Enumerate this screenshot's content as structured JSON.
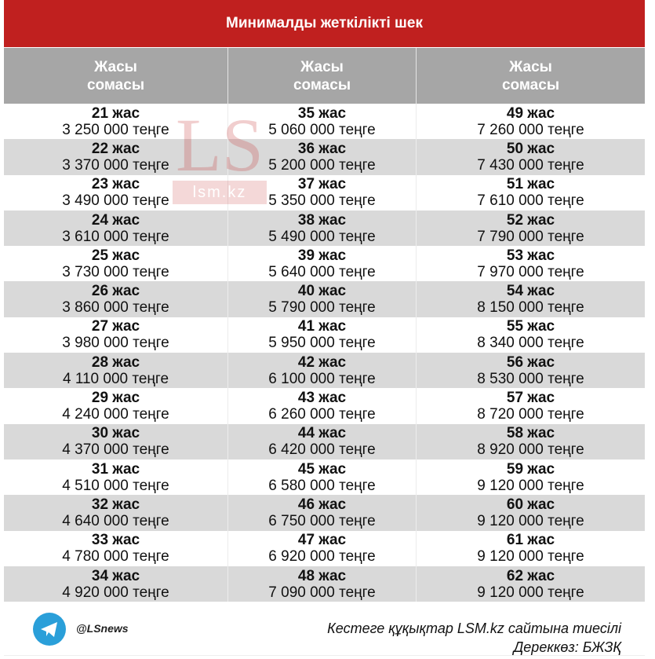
{
  "title": "Минималды жеткілікті шек",
  "header": [
    {
      "l1": "Жасы",
      "l2": "сомасы"
    },
    {
      "l1": "Жасы",
      "l2": "сомасы"
    },
    {
      "l1": "Жасы",
      "l2": "сомасы"
    }
  ],
  "rows": [
    [
      [
        "21 жас",
        "3 250 000 теңге"
      ],
      [
        "35 жас",
        "5 060 000 теңге"
      ],
      [
        "49 жас",
        "7 260 000 теңге"
      ]
    ],
    [
      [
        "22 жас",
        "3 370 000 теңге"
      ],
      [
        "36 жас",
        "5 200 000 теңге"
      ],
      [
        "50 жас",
        "7 430 000 теңге"
      ]
    ],
    [
      [
        "23 жас",
        "3 490 000 теңге"
      ],
      [
        "37 жас",
        "5 350 000 теңге"
      ],
      [
        "51 жас",
        "7 610 000 теңге"
      ]
    ],
    [
      [
        "24 жас",
        "3 610 000 теңге"
      ],
      [
        "38 жас",
        "5 490 000 теңге"
      ],
      [
        "52 жас",
        "7 790 000 теңге"
      ]
    ],
    [
      [
        "25 жас",
        "3 730 000 теңге"
      ],
      [
        "39 жас",
        "5 640 000 теңге"
      ],
      [
        "53 жас",
        "7 970 000 теңге"
      ]
    ],
    [
      [
        "26 жас",
        "3 860 000 теңге"
      ],
      [
        "40 жас",
        "5 790 000 теңге"
      ],
      [
        "54 жас",
        "8 150 000 теңге"
      ]
    ],
    [
      [
        "27 жас",
        "3 980 000 теңге"
      ],
      [
        "41 жас",
        "5 950 000 теңге"
      ],
      [
        "55 жас",
        "8 340 000 теңге"
      ]
    ],
    [
      [
        "28 жас",
        "4 110 000 теңге"
      ],
      [
        "42 жас",
        "6 100 000 теңге"
      ],
      [
        "56 жас",
        "8 530 000 теңге"
      ]
    ],
    [
      [
        "29 жас",
        "4 240 000 теңге"
      ],
      [
        "43 жас",
        "6 260 000 теңге"
      ],
      [
        "57 жас",
        "8 720 000 теңге"
      ]
    ],
    [
      [
        "30 жас",
        "4 370 000 теңге"
      ],
      [
        "44 жас",
        "6 420 000 теңге"
      ],
      [
        "58 жас",
        "8 920 000 теңге"
      ]
    ],
    [
      [
        "31 жас",
        "4 510 000 теңге"
      ],
      [
        "45 жас",
        "6 580 000 теңге"
      ],
      [
        "59 жас",
        "9 120 000 теңге"
      ]
    ],
    [
      [
        "32 жас",
        "4 640 000 теңге"
      ],
      [
        "46 жас",
        "6 750 000 теңге"
      ],
      [
        "60 жас",
        "9 120 000 теңге"
      ]
    ],
    [
      [
        "33 жас",
        "4 780 000 теңге"
      ],
      [
        "47 жас",
        "6 920 000 теңге"
      ],
      [
        "61 жас",
        "9 120 000 теңге"
      ]
    ],
    [
      [
        "34 жас",
        "4 920 000 теңге"
      ],
      [
        "48 жас",
        "7 090 000 теңге"
      ],
      [
        "62 жас",
        "9 120 000 теңге"
      ]
    ]
  ],
  "watermark": {
    "logo": "LS",
    "domain": "lsm.kz"
  },
  "footer": {
    "icon": "telegram-icon",
    "handle": "@LSnews",
    "rights": "Кестеге құқықтар LSM.kz сайтына тиесілі",
    "source": "Дереккөз: БЖЗҚ"
  },
  "colors": {
    "title_bg": "#c0201f",
    "header_bg": "#a6a6a6",
    "alt_row": "#d9d9d9",
    "telegram": "#2a9fd9"
  }
}
